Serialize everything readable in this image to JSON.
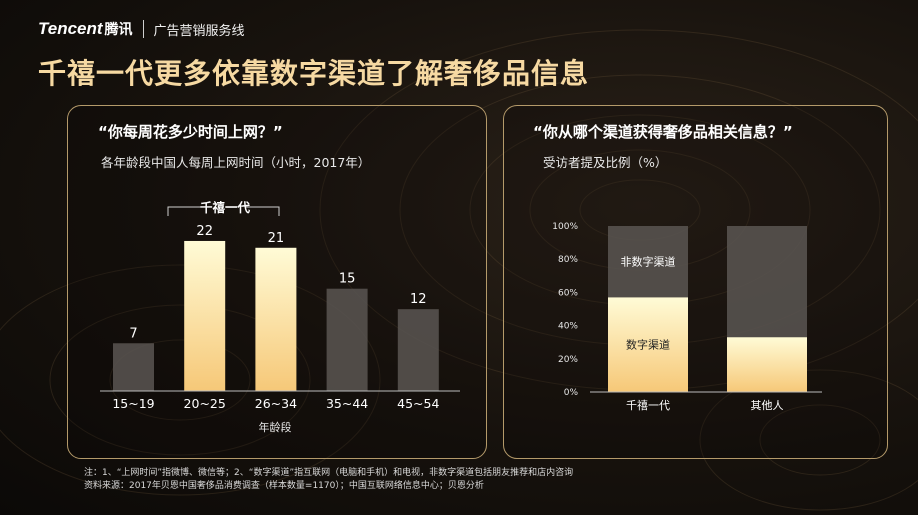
{
  "header": {
    "brand_en": "Tencent",
    "brand_cn": "腾讯",
    "brand_sub": "广告营销服务线"
  },
  "title": "千禧一代更多依靠数字渠道了解奢侈品信息",
  "left_panel": {
    "question": "“你每周花多少时间上网？”",
    "subtitle": "各年龄段中国人每周上网时间（小时，2017年）"
  },
  "right_panel": {
    "question": "“你从哪个渠道获得奢侈品相关信息？”",
    "subtitle": "受访者提及比例（%）"
  },
  "colors": {
    "title_gold": "#f6d9a2",
    "bar_highlight_top": "#fffbd6",
    "bar_highlight_bottom": "#f6c878",
    "bar_gray": "#5b5652",
    "panel_border": "#b49a6a"
  },
  "chart_data": [
    {
      "type": "bar",
      "categories": [
        "15~19",
        "20~25",
        "26~34",
        "35~44",
        "45~54"
      ],
      "values": [
        7,
        22,
        21,
        15,
        12
      ],
      "highlighted": [
        "20~25",
        "26~34"
      ],
      "bracket_label": "千禧一代",
      "xlabel": "年龄段",
      "ylim": [
        0,
        25
      ]
    },
    {
      "type": "bar",
      "stacked": true,
      "categories": [
        "千禧一代",
        "其他人"
      ],
      "series": [
        {
          "name": "数字渠道",
          "values": [
            57,
            33
          ]
        },
        {
          "name": "非数字渠道",
          "values": [
            43,
            67
          ]
        }
      ],
      "yticks": [
        "0%",
        "20%",
        "40%",
        "60%",
        "80%",
        "100%"
      ],
      "ylim": [
        0,
        100
      ]
    }
  ],
  "footnote": {
    "line1": "注：1、“上网时间”指微博、微信等；2、“数字渠道”指互联网（电脑和手机）和电视，非数字渠道包括朋友推荐和店内咨询",
    "line2": "资料来源：2017年贝恩中国奢侈品消费调查（样本数量=1170）；中国互联网络信息中心；贝恩分析"
  }
}
